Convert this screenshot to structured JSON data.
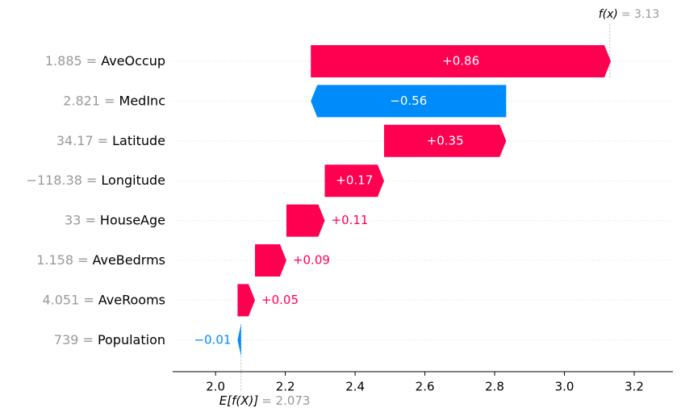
{
  "chart_data": {
    "type": "waterfall",
    "categories": [
      "AveOccup",
      "MedInc",
      "Latitude",
      "Longitude",
      "HouseAge",
      "AveBedrms",
      "AveRooms",
      "Population"
    ],
    "feature_values": [
      "1.885 =",
      "2.821 =",
      "34.17 =",
      "−118.38 =",
      "33 =",
      "1.158 =",
      "4.051 =",
      "739 ="
    ],
    "values": [
      0.86,
      -0.56,
      0.35,
      0.17,
      0.11,
      0.09,
      0.05,
      -0.01
    ],
    "value_labels": [
      "+0.86",
      "−0.56",
      "+0.35",
      "+0.17",
      "+0.11",
      "+0.09",
      "+0.05",
      "−0.01"
    ],
    "base_value": 2.073,
    "base_label": "E[f(X)]",
    "base_value_label": "= 2.073",
    "output_value": 3.13,
    "output_label": "f(x)",
    "output_value_label": "= 3.13",
    "xlim": [
      1.877,
      3.311
    ],
    "xticks": [
      {
        "value": 2,
        "label": "2.0"
      },
      2.2,
      2.4,
      2.6,
      2.8,
      {
        "value": 3,
        "label": "3.0"
      },
      3.2
    ],
    "positive_color": "#ff0051",
    "negative_color": "#008bfb",
    "grid": true
  }
}
